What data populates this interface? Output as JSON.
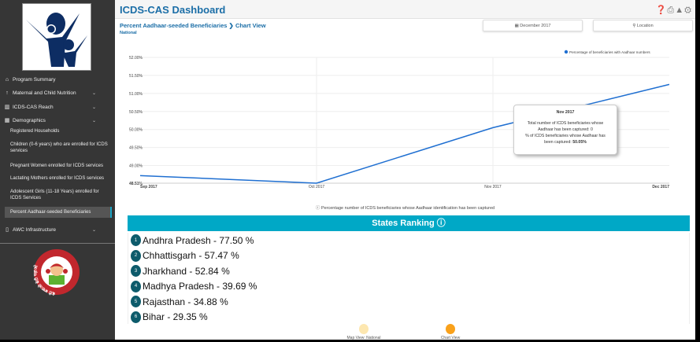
{
  "sidebar": {
    "items": [
      {
        "label": "Program Summary",
        "icon": "home-icon"
      },
      {
        "label": "Maternal and Child Nutrition",
        "icon": "person-icon"
      },
      {
        "label": "ICDS-CAS Reach",
        "icon": "bar-chart-icon"
      },
      {
        "label": "Demographics",
        "icon": "calendar-icon"
      },
      {
        "label": "AWC Infrastructure",
        "icon": "building-icon"
      }
    ],
    "sub_items": [
      "Registered Households",
      "Children (0-6 years) who are enrolled for ICDS services",
      "Pregnant Women enrolled for ICDS services",
      "Lactating Mothers enrolled for ICDS services",
      "Adolescent Girls (11-18 Years) enrolled for ICDS Services",
      "Percent Aadhaar-seeded Beneficiaries"
    ]
  },
  "header": {
    "title": "ICDS-CAS Dashboard",
    "icons": [
      "help-icon",
      "print-icon",
      "warning-icon",
      "gear-icon"
    ]
  },
  "breadcrumb": {
    "page": "Percent Aadhaar-seeded Beneficiaries",
    "sep": "❯",
    "view": "Chart View",
    "location": "National"
  },
  "filters": {
    "date": "December 2017",
    "location": "Location"
  },
  "chart_data": {
    "type": "line",
    "x": [
      "Sep 2017",
      "Oct 2017",
      "Nov 2017",
      "Dec 2017"
    ],
    "series": [
      {
        "name": "Percentage of beneficiaries with Aadhaar numbers",
        "values": [
          48.72,
          48.51,
          50.05,
          51.25
        ],
        "color": "#1f6fd1"
      }
    ],
    "yticks": [
      "48.51%",
      "49.00%",
      "49.50%",
      "50.00%",
      "50.50%",
      "51.00%",
      "51.50%",
      "52.00%"
    ],
    "ytick_values": [
      48.51,
      49.0,
      49.5,
      50.0,
      50.5,
      51.0,
      51.5,
      52.0
    ],
    "ylim": [
      48.51,
      52.0
    ],
    "legend": "top-right",
    "grid": true,
    "caption": "Percentage number of ICDS beneficiaries whose Aadhaar identification has been captured"
  },
  "tooltip": {
    "title": "Nov 2017",
    "line1": "Total number of ICDS beneficiaries whose",
    "line2": "Aadhaar has been captured: 0",
    "line3": "% of ICDS beneficiaries whose Aadhaar has",
    "line4": "been captured: ",
    "value": "50.05%"
  },
  "ranking": {
    "title": "States Ranking",
    "rows": [
      {
        "rank": "1",
        "text": "Andhra Pradesh - 77.50 %"
      },
      {
        "rank": "2",
        "text": "Chhattisgarh - 57.47 %"
      },
      {
        "rank": "3",
        "text": "Jharkhand - 52.84 %"
      },
      {
        "rank": "4",
        "text": "Madhya Pradesh - 39.69 %"
      },
      {
        "rank": "5",
        "text": "Rajasthan - 34.88 %"
      },
      {
        "rank": "6",
        "text": "Bihar - 29.35 %"
      }
    ]
  },
  "views": [
    {
      "label": "Map View: National",
      "color": "#fde7b0"
    },
    {
      "label": "Chart View",
      "color": "#f9a11b"
    }
  ],
  "bottom_logo_text": "बेटी बचाओ बेटी पढ़ाओ"
}
